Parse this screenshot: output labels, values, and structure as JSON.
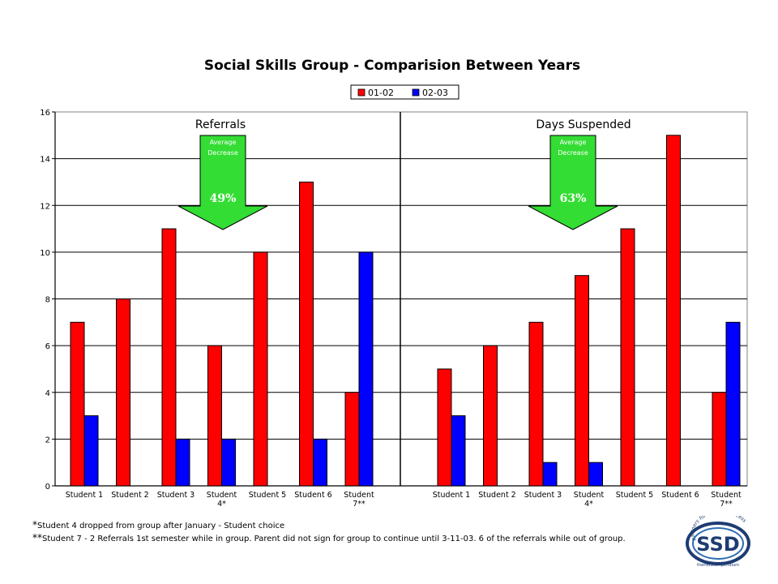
{
  "chart_data": {
    "type": "bar",
    "title": "Social Skills Group - Comparision Between Years",
    "legend": {
      "placement": "top",
      "entries": [
        "01-02",
        "02-03"
      ]
    },
    "colors": {
      "series_0102": "#ff0000",
      "series_0203": "#0000ff",
      "arrow": "#33dd33"
    },
    "ylim": [
      0,
      16
    ],
    "yticks": [
      "0",
      "2",
      "4",
      "6",
      "8",
      "10",
      "12",
      "14",
      "16"
    ],
    "grid": true,
    "categories": [
      "Student 1",
      "Student 2",
      "Student 3",
      "Student 4*",
      "Student 5",
      "Student 6",
      "Student 7**"
    ],
    "panels": [
      {
        "title": "Referrals",
        "series": [
          {
            "name": "01-02",
            "values": [
              7,
              8,
              11,
              6,
              10,
              13,
              4
            ]
          },
          {
            "name": "02-03",
            "values": [
              3,
              0,
              2,
              2,
              0,
              2,
              10
            ]
          }
        ],
        "annotation": {
          "label": "Average Decrease",
          "value": "49%"
        }
      },
      {
        "title": "Days Suspended",
        "series": [
          {
            "name": "01-02",
            "values": [
              5,
              6,
              7,
              9,
              11,
              15,
              4
            ]
          },
          {
            "name": "02-03",
            "values": [
              3,
              0,
              1,
              1,
              0,
              0,
              7
            ]
          }
        ],
        "annotation": {
          "label": "Average Decrease",
          "value": "63%"
        }
      }
    ]
  },
  "footnotes": {
    "note1_marker": "*",
    "note1": "Student 4 dropped from group after January - Student choice",
    "note2_marker": "**",
    "note2": "Student 7 - 2 Referrals 1st semester while in group. Parent did not sign for group to continue until 3-11-03. 6 of the referrals while out of group."
  },
  "logo": {
    "text": "SSD",
    "arc_text": "partners for student success",
    "bottom_text": "thePBIScompendium"
  }
}
